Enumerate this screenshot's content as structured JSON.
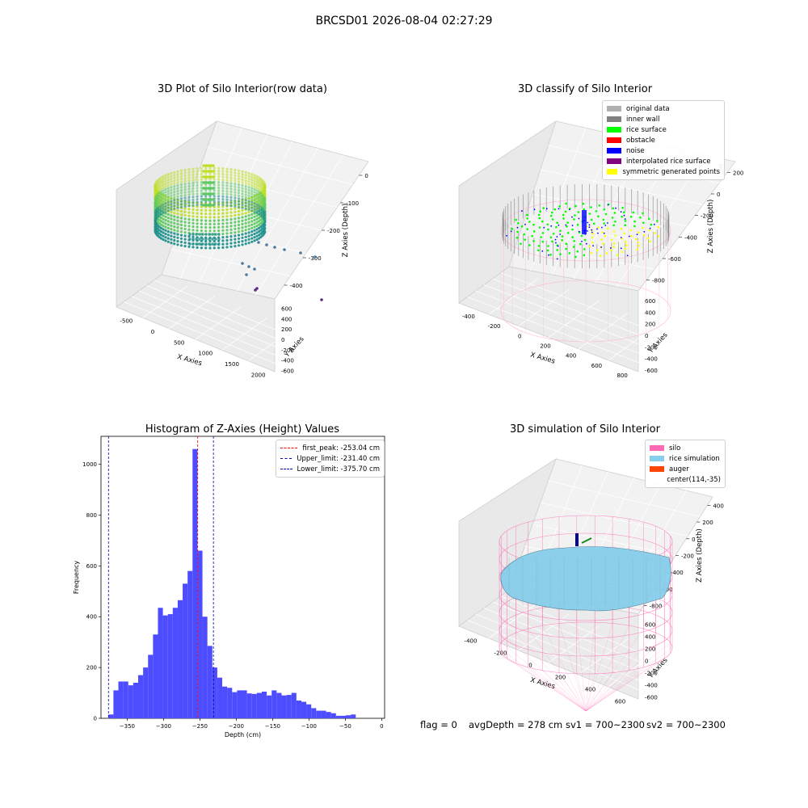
{
  "figure": {
    "suptitle": "BRCSD01 2026-08-04 02:27:29",
    "footer": {
      "flag": "flag = 0",
      "avg_depth": "avgDepth = 278 cm",
      "sv1": "sv1 = 700~2300",
      "sv2": "sv2 = 700~2300"
    }
  },
  "chart_data": [
    {
      "type": "scatter",
      "projection": "3d",
      "title": "3D Plot of Silo Interior(row data)",
      "xlabel": "X Axies",
      "ylabel": "Y Axies",
      "zlabel": "Z Axies (Depth)",
      "x_ticks": [
        "-500",
        "0",
        "500",
        "1000",
        "1500",
        "2000"
      ],
      "y_ticks": [
        "-600",
        "-400",
        "-200",
        "0",
        "200",
        "400",
        "600"
      ],
      "z_ticks": [
        "0",
        "-100",
        "-200",
        "-300",
        "-400"
      ],
      "colormap": "viridis",
      "colors": {
        "high": "#bddf26",
        "mid": "#21918c",
        "low": "#440154",
        "points": "#4a7ba0"
      }
    },
    {
      "type": "scatter",
      "projection": "3d",
      "title": "3D classify of Silo Interior",
      "xlabel": "X Axies",
      "ylabel": "Y Axies",
      "zlabel": "Z Axies (Depth)",
      "x_ticks": [
        "-400",
        "-200",
        "0",
        "200",
        "400",
        "600",
        "800"
      ],
      "y_ticks": [
        "-600",
        "-400",
        "-200",
        "0",
        "200",
        "400",
        "600"
      ],
      "z_ticks": [
        "200",
        "0",
        "-200",
        "-400",
        "-600",
        "-800"
      ],
      "z_top_tick": "0",
      "legend_position": "top-right",
      "legend": [
        {
          "label": "original data",
          "color": "#b0b0b0"
        },
        {
          "label": "inner wall",
          "color": "#808080"
        },
        {
          "label": "rice surface",
          "color": "#00ff00"
        },
        {
          "label": "obstacle",
          "color": "#ff0000"
        },
        {
          "label": "noise",
          "color": "#0000ff"
        },
        {
          "label": "interpolated rice surface",
          "color": "#800080"
        },
        {
          "label": "symmetric generated points",
          "color": "#ffff00"
        }
      ],
      "colors": {
        "silo": "#ffb6d5"
      }
    },
    {
      "type": "histogram",
      "title": "Histogram of Z-Axies (Height) Values",
      "xlabel": "Depth (cm)",
      "ylabel": "Frequency",
      "xlim": [
        -386,
        4
      ],
      "ylim": [
        0,
        1110
      ],
      "bin_width": 6.8,
      "bin_start": -375.7,
      "counts": [
        15,
        110,
        145,
        145,
        130,
        140,
        170,
        200,
        250,
        330,
        435,
        405,
        410,
        435,
        465,
        530,
        580,
        1060,
        660,
        400,
        285,
        200,
        160,
        125,
        120,
        103,
        110,
        110,
        98,
        96,
        100,
        105,
        90,
        110,
        100,
        90,
        92,
        100,
        70,
        65,
        55,
        40,
        30,
        30,
        25,
        20,
        10,
        10,
        12,
        15
      ],
      "x_ticks": [
        -350,
        -300,
        -250,
        -200,
        -150,
        -100,
        -50,
        0
      ],
      "y_ticks": [
        0,
        200,
        400,
        600,
        800,
        1000
      ],
      "bar_color": "#4d4dff",
      "lines": [
        {
          "label": "first_peak: -253.04 cm",
          "x": -253.04,
          "color": "#ff0000"
        },
        {
          "label": "Upper_limit: -231.40 cm",
          "x": -231.4,
          "color": "#0000aa"
        },
        {
          "label": "Lower_limit: -375.70 cm",
          "x": -375.7,
          "color": "#0000aa"
        }
      ],
      "legend_position": "top-right"
    },
    {
      "type": "surface",
      "projection": "3d",
      "title": "3D simulation of Silo Interior",
      "xlabel": "X Axies",
      "ylabel": "Y Axies",
      "zlabel": "Z Axies (Depth)",
      "x_ticks": [
        "-400",
        "-200",
        "0",
        "200",
        "400",
        "600"
      ],
      "y_ticks": [
        "-600",
        "-400",
        "-200",
        "0",
        "200",
        "400",
        "600"
      ],
      "z_ticks": [
        "400",
        "200",
        "0",
        "-200",
        "-400",
        "-600",
        "-800"
      ],
      "legend_position": "top-right",
      "legend": [
        {
          "label": "silo",
          "color": "#ff69b4"
        },
        {
          "label": "rice simulation",
          "color": "#87ceeb"
        },
        {
          "label": "auger",
          "color": "#ff4500"
        },
        {
          "label": "center(114,-35)",
          "color": ""
        }
      ],
      "colors": {
        "silo": "#ff69b4",
        "rice": "#87ceeb"
      }
    }
  ]
}
